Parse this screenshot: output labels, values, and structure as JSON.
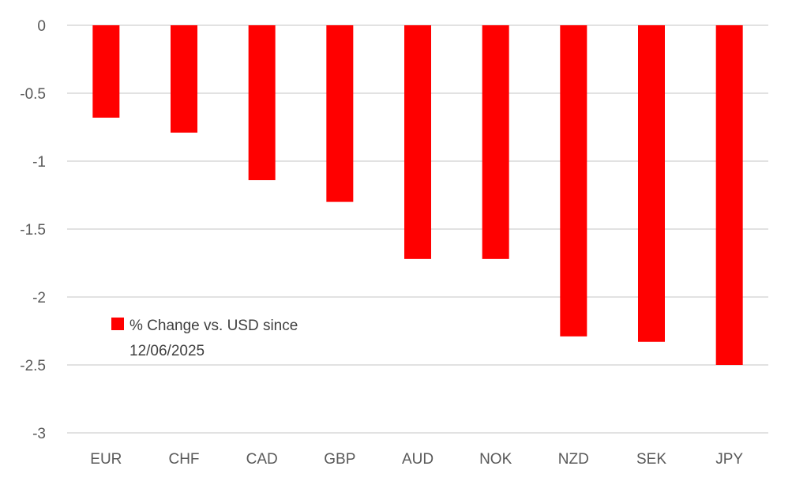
{
  "chart_data": {
    "type": "bar",
    "categories": [
      "EUR",
      "CHF",
      "CAD",
      "GBP",
      "AUD",
      "NOK",
      "NZD",
      "SEK",
      "JPY"
    ],
    "series": [
      {
        "name": "% Change vs. USD since 12/06/2025",
        "color": "#ff0000",
        "values": [
          -0.68,
          -0.79,
          -1.14,
          -1.3,
          -1.72,
          -1.72,
          -2.29,
          -2.33,
          -2.5
        ]
      }
    ],
    "y_ticks": [
      "0",
      "-0.5",
      "-1",
      "-1.5",
      "-2",
      "-2.5",
      "-3"
    ],
    "y_tick_values": [
      0,
      -0.5,
      -1,
      -1.5,
      -2,
      -2.5,
      -3
    ],
    "ylim": [
      -3,
      0
    ],
    "grid": true,
    "legend": {
      "placement": "lower-left",
      "line1": "% Change vs. USD since",
      "line2": "12/06/2025"
    },
    "title": "",
    "xlabel": "",
    "ylabel": ""
  }
}
